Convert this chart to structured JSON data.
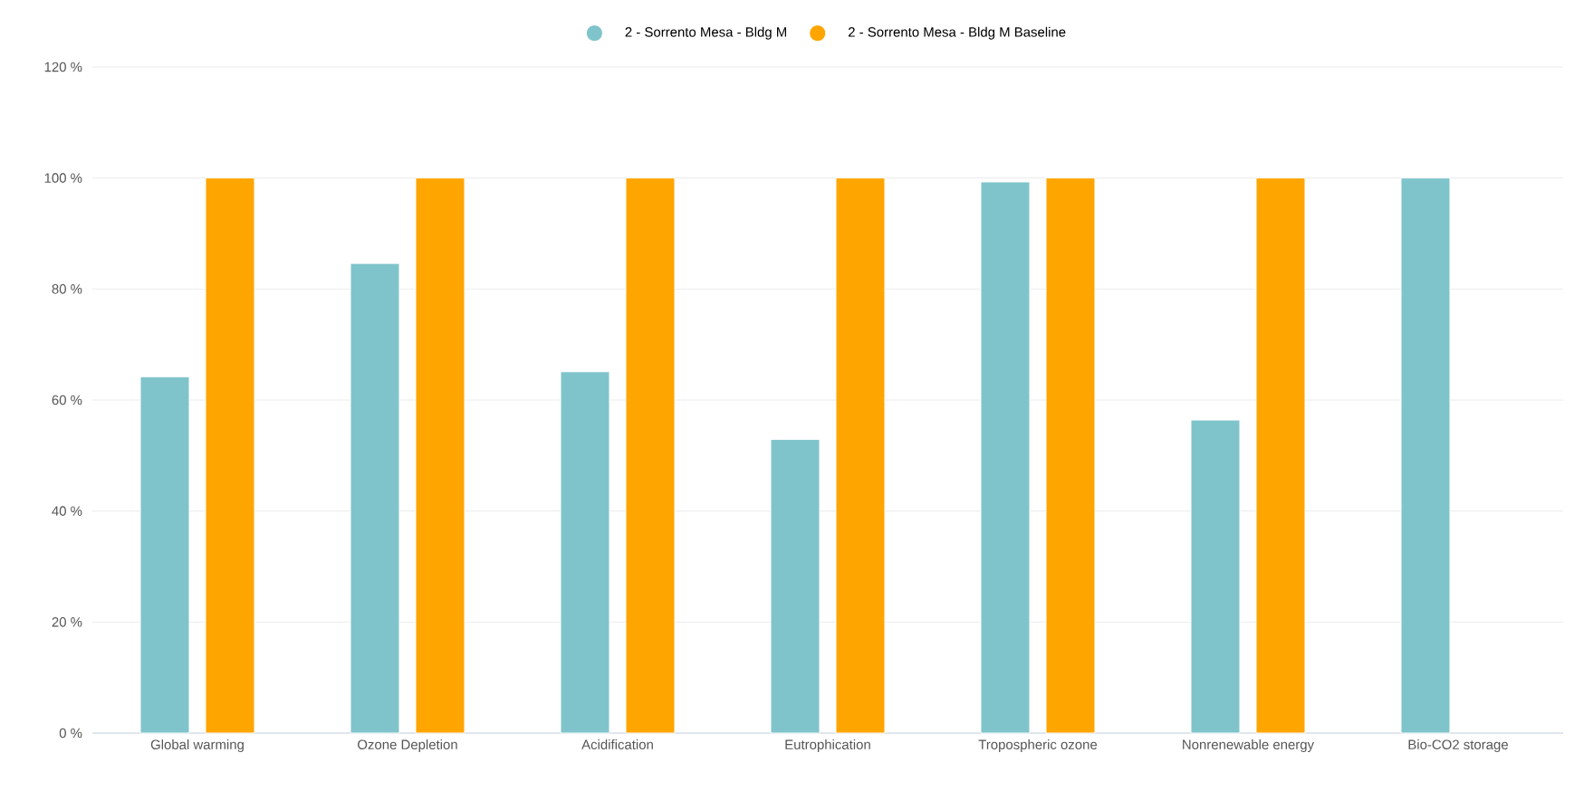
{
  "chart_data": {
    "type": "bar",
    "categories": [
      "Global warming",
      "Ozone Depletion",
      "Acidification",
      "Eutrophication",
      "Tropospheric ozone",
      "Nonrenewable energy",
      "Bio-CO2 storage"
    ],
    "series": [
      {
        "name": "2 - Sorrento Mesa - Bldg M",
        "color": "#80c4cb",
        "values": [
          64.2,
          84.6,
          65.1,
          52.9,
          99.3,
          56.4,
          100
        ]
      },
      {
        "name": "2 - Sorrento Mesa - Bldg M Baseline",
        "color": "#ffa500",
        "values": [
          100,
          100,
          100,
          100,
          100,
          100,
          null
        ]
      }
    ],
    "ylim": [
      0,
      120
    ],
    "yticks": [
      {
        "value": 0,
        "label": "0 %"
      },
      {
        "value": 20,
        "label": "20 %"
      },
      {
        "value": 40,
        "label": "40 %"
      },
      {
        "value": 60,
        "label": "60 %"
      },
      {
        "value": 80,
        "label": "80 %"
      },
      {
        "value": 100,
        "label": "100 %"
      },
      {
        "value": 120,
        "label": "120 %"
      }
    ],
    "grid": "y",
    "legend": "top"
  }
}
